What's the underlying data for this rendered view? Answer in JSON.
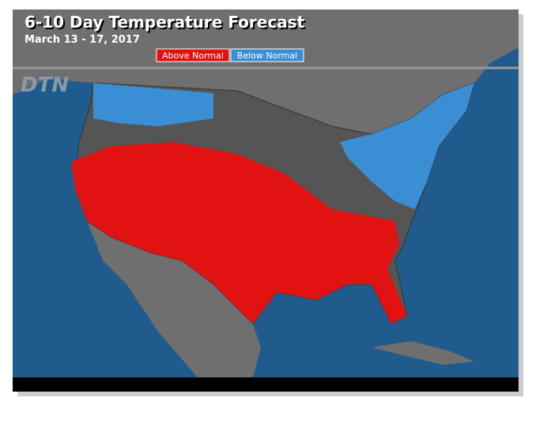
{
  "header": {
    "title": "6-10 Day Temperature Forecast",
    "subtitle": "March 13 - 17, 2017"
  },
  "legend": [
    {
      "label": "Above Normal",
      "color": "#e01212"
    },
    {
      "label": "Below Normal",
      "color": "#3a8fd4"
    }
  ],
  "logo": "DTN"
}
